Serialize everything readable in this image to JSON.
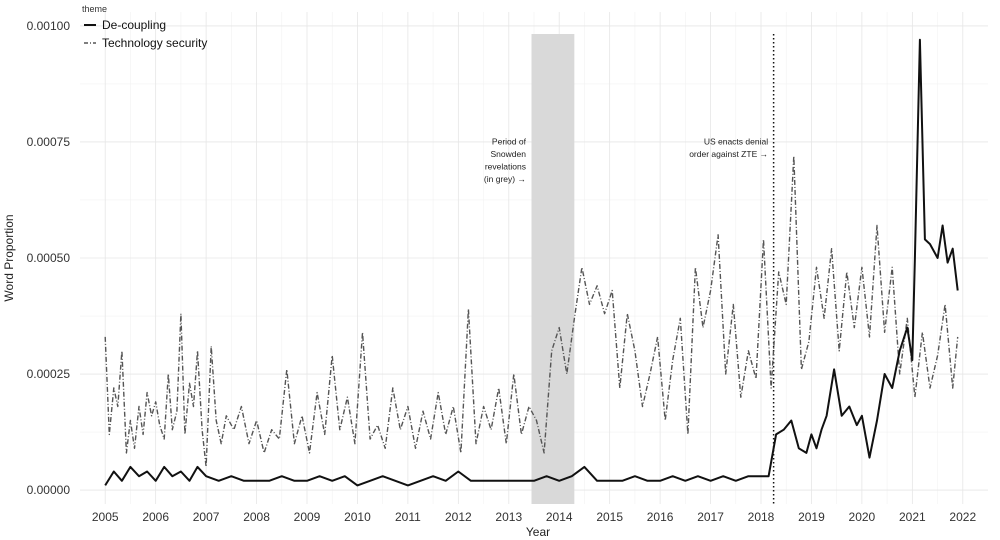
{
  "chart_data": {
    "type": "line",
    "title": "",
    "xlabel": "Year",
    "ylabel": "Word Proportion",
    "xlim": [
      2004.5,
      2022.5
    ],
    "ylim": [
      -3e-05,
      0.00103
    ],
    "x_ticks": [
      2005,
      2006,
      2007,
      2008,
      2009,
      2010,
      2011,
      2012,
      2013,
      2014,
      2015,
      2016,
      2017,
      2018,
      2019,
      2020,
      2021,
      2022
    ],
    "x_tick_labels": [
      "2005",
      "2006",
      "2007",
      "2008",
      "2009",
      "2010",
      "2011",
      "2012",
      "2013",
      "2014",
      "2015",
      "2016",
      "2017",
      "2018",
      "2019",
      "2020",
      "2021",
      "2022"
    ],
    "y_ticks": [
      0,
      0.00025,
      0.0005,
      0.00075,
      0.001
    ],
    "y_tick_labels": [
      "0.00000",
      "0.00025",
      "0.00050",
      "0.00075",
      "0.00100"
    ],
    "grid": true,
    "legend": {
      "title": "theme",
      "position": "top-left",
      "entries": [
        "De-coupling",
        "Technology security"
      ]
    },
    "shaded_region": {
      "x_start": 2013.45,
      "x_end": 2014.3,
      "color": "#d9d9d9"
    },
    "vertical_line": {
      "x": 2018.25,
      "style": "dotted"
    },
    "annotations": [
      {
        "lines": [
          "Period of",
          "Snowden",
          "revelations",
          "(in grey) →"
        ],
        "x": 2013.42,
        "y": 0.000745,
        "anchor": "end"
      },
      {
        "lines": [
          "US enacts denial",
          "order against ZTE →"
        ],
        "x": 2018.22,
        "y": 0.000745,
        "anchor": "end"
      }
    ],
    "series": [
      {
        "name": "De-coupling",
        "color": "#111111",
        "style": "solid",
        "x": [
          2005.0,
          2005.17,
          2005.33,
          2005.5,
          2005.67,
          2005.83,
          2006.0,
          2006.17,
          2006.33,
          2006.5,
          2006.67,
          2006.83,
          2007.0,
          2007.25,
          2007.5,
          2007.75,
          2008.0,
          2008.25,
          2008.5,
          2008.75,
          2009.0,
          2009.25,
          2009.5,
          2009.75,
          2010.0,
          2010.25,
          2010.5,
          2010.75,
          2011.0,
          2011.25,
          2011.5,
          2011.75,
          2012.0,
          2012.25,
          2012.5,
          2012.75,
          2013.0,
          2013.25,
          2013.5,
          2013.75,
          2014.0,
          2014.25,
          2014.5,
          2014.75,
          2015.0,
          2015.25,
          2015.5,
          2015.75,
          2016.0,
          2016.25,
          2016.5,
          2016.75,
          2017.0,
          2017.25,
          2017.5,
          2017.75,
          2018.0,
          2018.15,
          2018.3,
          2018.45,
          2018.6,
          2018.75,
          2018.9,
          2019.0,
          2019.1,
          2019.2,
          2019.3,
          2019.45,
          2019.6,
          2019.75,
          2019.9,
          2020.0,
          2020.15,
          2020.3,
          2020.45,
          2020.6,
          2020.75,
          2020.9,
          2021.0,
          2021.05,
          2021.15,
          2021.25,
          2021.35,
          2021.5,
          2021.6,
          2021.7,
          2021.8,
          2021.9
        ],
        "values": [
          1e-05,
          4e-05,
          2e-05,
          5e-05,
          3e-05,
          4e-05,
          2e-05,
          5e-05,
          3e-05,
          4e-05,
          2e-05,
          5e-05,
          3e-05,
          2e-05,
          3e-05,
          2e-05,
          2e-05,
          2e-05,
          3e-05,
          2e-05,
          2e-05,
          3e-05,
          2e-05,
          3e-05,
          1e-05,
          2e-05,
          3e-05,
          2e-05,
          1e-05,
          2e-05,
          3e-05,
          2e-05,
          4e-05,
          2e-05,
          2e-05,
          2e-05,
          2e-05,
          2e-05,
          2e-05,
          3e-05,
          2e-05,
          3e-05,
          5e-05,
          2e-05,
          2e-05,
          2e-05,
          3e-05,
          2e-05,
          2e-05,
          3e-05,
          2e-05,
          3e-05,
          2e-05,
          3e-05,
          2e-05,
          3e-05,
          3e-05,
          3e-05,
          0.00012,
          0.00013,
          0.00015,
          9e-05,
          8e-05,
          0.00012,
          9e-05,
          0.00013,
          0.00016,
          0.00026,
          0.00016,
          0.00018,
          0.00014,
          0.00016,
          7e-05,
          0.00015,
          0.00025,
          0.00022,
          0.0003,
          0.00035,
          0.00028,
          0.0005,
          0.00097,
          0.00054,
          0.00053,
          0.0005,
          0.00057,
          0.00049,
          0.00052,
          0.00043
        ]
      },
      {
        "name": "Technology security",
        "color": "#555555",
        "style": "dashdot",
        "x": [
          2005.0,
          2005.08,
          2005.17,
          2005.25,
          2005.33,
          2005.42,
          2005.5,
          2005.58,
          2005.67,
          2005.75,
          2005.83,
          2005.92,
          2006.0,
          2006.08,
          2006.17,
          2006.25,
          2006.33,
          2006.42,
          2006.5,
          2006.58,
          2006.67,
          2006.75,
          2006.83,
          2006.92,
          2007.0,
          2007.1,
          2007.2,
          2007.3,
          2007.4,
          2007.55,
          2007.7,
          2007.85,
          2008.0,
          2008.15,
          2008.3,
          2008.45,
          2008.6,
          2008.75,
          2008.9,
          2009.05,
          2009.2,
          2009.35,
          2009.5,
          2009.65,
          2009.8,
          2009.95,
          2010.1,
          2010.25,
          2010.4,
          2010.55,
          2010.7,
          2010.85,
          2011.0,
          2011.15,
          2011.3,
          2011.45,
          2011.6,
          2011.75,
          2011.9,
          2012.05,
          2012.2,
          2012.35,
          2012.5,
          2012.65,
          2012.8,
          2012.95,
          2013.1,
          2013.25,
          2013.4,
          2013.55,
          2013.7,
          2013.85,
          2014.0,
          2014.15,
          2014.3,
          2014.45,
          2014.6,
          2014.75,
          2014.9,
          2015.05,
          2015.2,
          2015.35,
          2015.5,
          2015.65,
          2015.8,
          2015.95,
          2016.1,
          2016.25,
          2016.4,
          2016.55,
          2016.7,
          2016.85,
          2017.0,
          2017.15,
          2017.3,
          2017.45,
          2017.6,
          2017.75,
          2017.9,
          2018.05,
          2018.2,
          2018.35,
          2018.5,
          2018.65,
          2018.8,
          2018.95,
          2019.1,
          2019.25,
          2019.4,
          2019.55,
          2019.7,
          2019.85,
          2020.0,
          2020.15,
          2020.3,
          2020.45,
          2020.6,
          2020.75,
          2020.9,
          2021.05,
          2021.2,
          2021.35,
          2021.5,
          2021.65,
          2021.8,
          2021.9
        ],
        "values": [
          0.00033,
          0.00012,
          0.00022,
          0.00018,
          0.0003,
          8e-05,
          0.00015,
          9e-05,
          0.00018,
          0.00012,
          0.00021,
          0.00016,
          0.00019,
          0.00014,
          0.00011,
          0.00025,
          0.00013,
          0.00017,
          0.00038,
          0.00012,
          0.00023,
          0.00018,
          0.0003,
          0.00013,
          5e-05,
          0.00031,
          0.00015,
          0.0001,
          0.00016,
          0.00013,
          0.00018,
          0.0001,
          0.00015,
          8e-05,
          0.00013,
          0.00011,
          0.00026,
          0.0001,
          0.00016,
          8e-05,
          0.00021,
          0.00012,
          0.00029,
          0.00013,
          0.0002,
          0.0001,
          0.00034,
          0.00011,
          0.00014,
          9e-05,
          0.00022,
          0.00013,
          0.00018,
          9e-05,
          0.00017,
          0.00011,
          0.00021,
          0.00012,
          0.00018,
          8e-05,
          0.00039,
          0.0001,
          0.00018,
          0.00013,
          0.00022,
          0.0001,
          0.00025,
          0.00012,
          0.00018,
          0.00015,
          8e-05,
          0.0003,
          0.00035,
          0.00025,
          0.00037,
          0.00048,
          0.0004,
          0.00044,
          0.00038,
          0.00043,
          0.00022,
          0.00038,
          0.0003,
          0.00018,
          0.00025,
          0.00033,
          0.00015,
          0.00028,
          0.00037,
          0.00012,
          0.00048,
          0.00035,
          0.00043,
          0.00055,
          0.00025,
          0.0004,
          0.0002,
          0.0003,
          0.00024,
          0.00054,
          0.00022,
          0.00047,
          0.0004,
          0.00072,
          0.00026,
          0.00032,
          0.00048,
          0.00037,
          0.00052,
          0.0003,
          0.00047,
          0.00035,
          0.00048,
          0.00033,
          0.00057,
          0.00034,
          0.00048,
          0.00025,
          0.00037,
          0.0002,
          0.00034,
          0.00022,
          0.00029,
          0.0004,
          0.00022,
          0.00033
        ]
      }
    ]
  }
}
